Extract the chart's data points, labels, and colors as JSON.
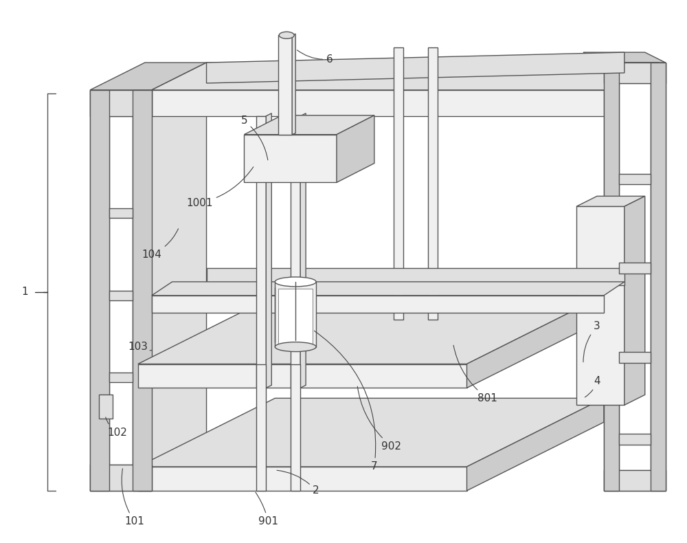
{
  "bg_color": "#ffffff",
  "lc": "#555555",
  "lw": 1.0,
  "fill_white": "#ffffff",
  "fill_light": "#f0f0f0",
  "fill_mid": "#e0e0e0",
  "fill_dark": "#cccccc",
  "fill_darker": "#b8b8b8",
  "figsize": [
    10.0,
    7.9
  ],
  "dpi": 100
}
